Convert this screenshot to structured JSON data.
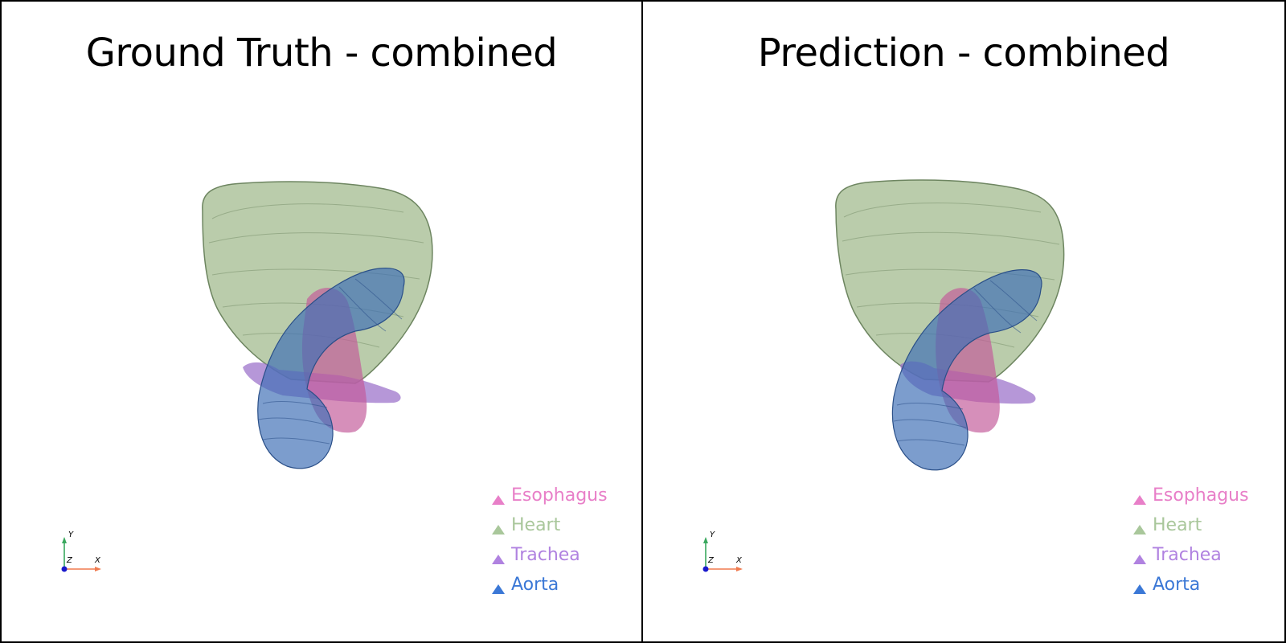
{
  "panels": [
    {
      "title": "Ground Truth - combined"
    },
    {
      "title": "Prediction - combined"
    }
  ],
  "legend": [
    {
      "label": "Esophagus",
      "color": "#e87fc8"
    },
    {
      "label": "Heart",
      "color": "#a9c79b"
    },
    {
      "label": "Trachea",
      "color": "#b082e0"
    },
    {
      "label": "Aorta",
      "color": "#3b78d6"
    }
  ],
  "axes": {
    "x": "X",
    "y": "Y",
    "z": "Z",
    "x_color": "#f07a4f",
    "y_color": "#3aa85e",
    "z_color": "#1a1acc"
  },
  "organ_colors": {
    "heart": "#9fb88a",
    "aorta": "#3e6fb5",
    "trachea": "#9a6fc9",
    "esophagus": "#c35a9a",
    "heart_edge": "#6d8560",
    "aorta_edge": "#2a4f88"
  }
}
